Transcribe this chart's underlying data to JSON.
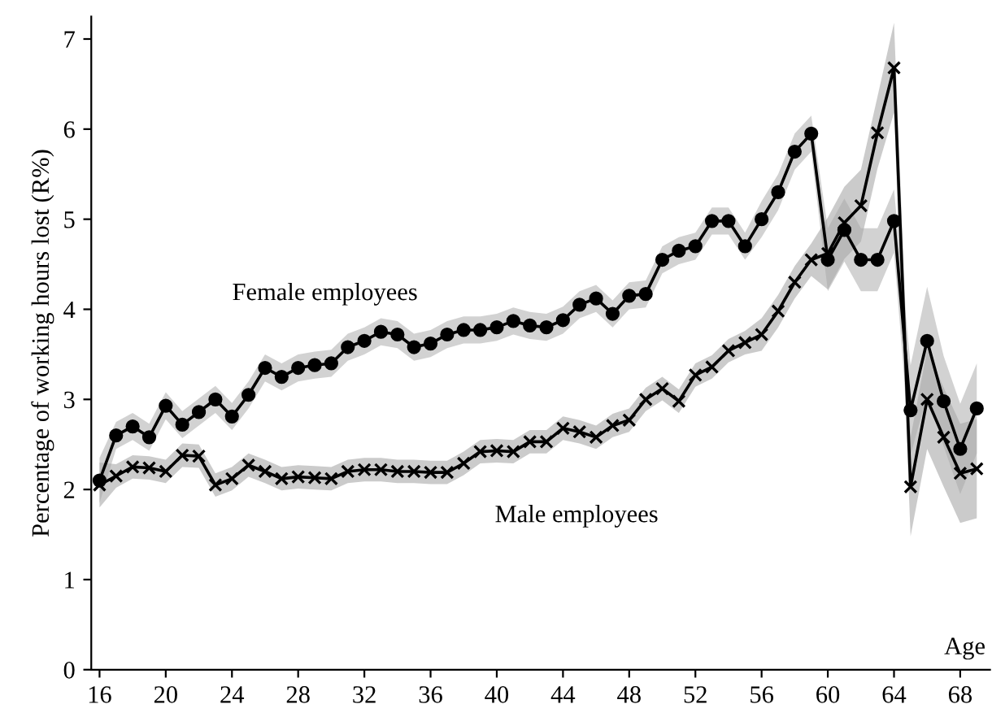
{
  "chart_data": {
    "type": "line",
    "xlabel": "Age",
    "ylabel": "Percentage of working hours lost (R%)",
    "x": [
      16,
      17,
      18,
      19,
      20,
      21,
      22,
      23,
      24,
      25,
      26,
      27,
      28,
      29,
      30,
      31,
      32,
      33,
      34,
      35,
      36,
      37,
      38,
      39,
      40,
      41,
      42,
      43,
      44,
      45,
      46,
      47,
      48,
      49,
      50,
      51,
      52,
      53,
      54,
      55,
      56,
      57,
      58,
      59,
      60,
      61,
      62,
      63,
      64,
      65,
      66,
      67,
      68,
      69
    ],
    "xlim": [
      15.5,
      69.8
    ],
    "xticks": [
      16,
      20,
      24,
      28,
      32,
      36,
      40,
      44,
      48,
      52,
      56,
      60,
      64,
      68
    ],
    "ylim": [
      0,
      7.25
    ],
    "yticks": [
      0,
      1,
      2,
      3,
      4,
      5,
      6,
      7
    ],
    "grid": false,
    "legend": false,
    "line_style": "solid",
    "series": [
      {
        "name": "Female employees",
        "color": "#000000",
        "marker": "circle",
        "values": [
          2.1,
          2.6,
          2.7,
          2.58,
          2.93,
          2.72,
          2.86,
          3.0,
          2.81,
          3.05,
          3.35,
          3.25,
          3.35,
          3.38,
          3.4,
          3.58,
          3.65,
          3.75,
          3.72,
          3.58,
          3.62,
          3.72,
          3.77,
          3.77,
          3.8,
          3.87,
          3.82,
          3.8,
          3.88,
          4.05,
          4.12,
          3.95,
          4.15,
          4.17,
          4.55,
          4.65,
          4.7,
          4.98,
          4.98,
          4.7,
          5.0,
          5.3,
          5.75,
          5.95,
          4.55,
          4.88,
          4.55,
          4.55,
          4.98,
          2.88,
          3.65,
          2.98,
          2.45,
          2.9
        ],
        "lower": [
          1.85,
          2.45,
          2.55,
          2.43,
          2.78,
          2.57,
          2.71,
          2.85,
          2.66,
          2.9,
          3.2,
          3.1,
          3.2,
          3.23,
          3.25,
          3.43,
          3.5,
          3.6,
          3.57,
          3.43,
          3.47,
          3.57,
          3.62,
          3.62,
          3.65,
          3.72,
          3.67,
          3.65,
          3.73,
          3.9,
          3.97,
          3.8,
          4.0,
          4.02,
          4.4,
          4.5,
          4.55,
          4.83,
          4.83,
          4.55,
          4.8,
          5.1,
          5.55,
          5.75,
          4.2,
          4.53,
          4.2,
          4.2,
          4.63,
          2.38,
          3.05,
          2.48,
          1.95,
          2.4
        ],
        "upper": [
          2.35,
          2.75,
          2.85,
          2.73,
          3.08,
          2.87,
          3.01,
          3.15,
          2.96,
          3.2,
          3.5,
          3.4,
          3.5,
          3.53,
          3.55,
          3.73,
          3.8,
          3.9,
          3.87,
          3.73,
          3.77,
          3.87,
          3.92,
          3.92,
          3.95,
          4.02,
          3.97,
          3.95,
          4.03,
          4.2,
          4.27,
          4.1,
          4.3,
          4.32,
          4.7,
          4.8,
          4.85,
          5.13,
          5.13,
          4.85,
          5.2,
          5.5,
          5.95,
          6.15,
          4.9,
          5.23,
          4.9,
          4.9,
          5.33,
          3.38,
          4.25,
          3.48,
          2.95,
          3.4
        ]
      },
      {
        "name": "Male employees",
        "color": "#000000",
        "marker": "cross",
        "values": [
          2.05,
          2.15,
          2.25,
          2.24,
          2.2,
          2.38,
          2.37,
          2.05,
          2.12,
          2.27,
          2.2,
          2.12,
          2.14,
          2.13,
          2.12,
          2.2,
          2.22,
          2.22,
          2.2,
          2.2,
          2.19,
          2.19,
          2.29,
          2.42,
          2.43,
          2.42,
          2.53,
          2.53,
          2.68,
          2.64,
          2.58,
          2.71,
          2.77,
          3.0,
          3.12,
          2.98,
          3.27,
          3.36,
          3.54,
          3.63,
          3.72,
          3.98,
          4.3,
          4.55,
          4.62,
          4.96,
          5.15,
          5.96,
          6.68,
          2.03,
          3.0,
          2.58,
          2.18,
          2.23
        ],
        "lower": [
          1.8,
          2.02,
          2.12,
          2.11,
          2.07,
          2.25,
          2.24,
          1.92,
          1.99,
          2.14,
          2.07,
          1.99,
          2.01,
          2.0,
          1.99,
          2.07,
          2.09,
          2.09,
          2.07,
          2.07,
          2.06,
          2.06,
          2.16,
          2.29,
          2.3,
          2.29,
          2.4,
          2.4,
          2.55,
          2.51,
          2.45,
          2.58,
          2.64,
          2.87,
          2.99,
          2.85,
          3.14,
          3.23,
          3.41,
          3.5,
          3.54,
          3.8,
          4.12,
          4.37,
          4.22,
          4.56,
          4.75,
          5.56,
          6.18,
          1.48,
          2.45,
          2.03,
          1.63,
          1.68
        ],
        "upper": [
          2.3,
          2.28,
          2.38,
          2.37,
          2.33,
          2.51,
          2.5,
          2.18,
          2.25,
          2.4,
          2.33,
          2.25,
          2.27,
          2.26,
          2.25,
          2.33,
          2.35,
          2.35,
          2.33,
          2.33,
          2.32,
          2.32,
          2.42,
          2.55,
          2.56,
          2.55,
          2.66,
          2.66,
          2.81,
          2.77,
          2.71,
          2.84,
          2.9,
          3.13,
          3.25,
          3.11,
          3.4,
          3.49,
          3.67,
          3.76,
          3.9,
          4.16,
          4.48,
          4.73,
          5.02,
          5.36,
          5.55,
          6.36,
          7.18,
          2.58,
          3.55,
          3.13,
          2.73,
          2.78
        ]
      }
    ]
  }
}
